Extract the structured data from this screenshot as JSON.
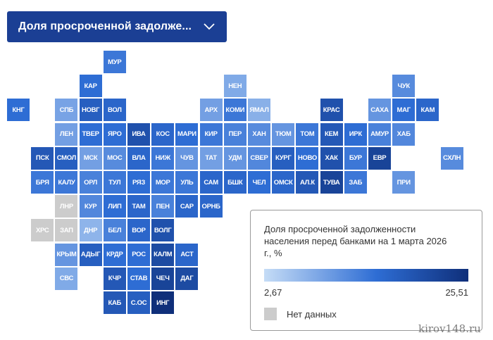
{
  "dropdown": {
    "label": "Доля просроченной задолже..."
  },
  "legend": {
    "title": "Доля просроченной задолженности населения перед банками на 1 марта 2026 г., %",
    "min": "2,67",
    "max": "25,51",
    "no_data": "Нет данных"
  },
  "watermark": "kirov148.ru",
  "regions": [
    {
      "code": "МУР",
      "level": 0.5
    },
    {
      "code": "КАР",
      "level": 0.55
    },
    {
      "code": "НЕН",
      "level": 0.25
    },
    {
      "code": "ЧУК",
      "level": 0.4
    },
    {
      "code": "КНГ",
      "level": 0.55
    },
    {
      "code": "СПБ",
      "level": 0.28
    },
    {
      "code": "НОВГ",
      "level": 0.65
    },
    {
      "code": "ВОЛ",
      "level": 0.6
    },
    {
      "code": "АРХ",
      "level": 0.3
    },
    {
      "code": "КОМИ",
      "level": 0.5
    },
    {
      "code": "ЯМАЛ",
      "level": 0.22
    },
    {
      "code": "КРАС",
      "level": 0.75
    },
    {
      "code": "САХА",
      "level": 0.35
    },
    {
      "code": "МАГ",
      "level": 0.55
    },
    {
      "code": "КАМ",
      "level": 0.6
    },
    {
      "code": "ЛЕН",
      "level": 0.3
    },
    {
      "code": "ТВЕР",
      "level": 0.55
    },
    {
      "code": "ЯРО",
      "level": 0.55
    },
    {
      "code": "ИВА",
      "level": 0.75
    },
    {
      "code": "КОС",
      "level": 0.6
    },
    {
      "code": "МАРИ",
      "level": 0.55
    },
    {
      "code": "КИР",
      "level": 0.5
    },
    {
      "code": "ПЕР",
      "level": 0.45
    },
    {
      "code": "ХАН",
      "level": 0.4
    },
    {
      "code": "ТЮМ",
      "level": 0.35
    },
    {
      "code": "ТОМ",
      "level": 0.5
    },
    {
      "code": "КЕМ",
      "level": 0.7
    },
    {
      "code": "ИРК",
      "level": 0.55
    },
    {
      "code": "АМУР",
      "level": 0.45
    },
    {
      "code": "ХАБ",
      "level": 0.42
    },
    {
      "code": "ПСК",
      "level": 0.7
    },
    {
      "code": "СМОЛ",
      "level": 0.65
    },
    {
      "code": "МСК",
      "level": 0.3
    },
    {
      "code": "МОС",
      "level": 0.4
    },
    {
      "code": "ВЛА",
      "level": 0.6
    },
    {
      "code": "НИЖ",
      "level": 0.5
    },
    {
      "code": "ЧУВ",
      "level": 0.35
    },
    {
      "code": "ТАТ",
      "level": 0.3
    },
    {
      "code": "УДМ",
      "level": 0.35
    },
    {
      "code": "СВЕР",
      "level": 0.42
    },
    {
      "code": "КУРГ",
      "level": 0.65
    },
    {
      "code": "НОВО",
      "level": 0.55
    },
    {
      "code": "ХАК",
      "level": 0.75
    },
    {
      "code": "БУР",
      "level": 0.5
    },
    {
      "code": "ЕВР",
      "level": 0.85
    },
    {
      "code": "СХЛН",
      "level": 0.4
    },
    {
      "code": "БРЯ",
      "level": 0.5
    },
    {
      "code": "КАЛУ",
      "level": 0.5
    },
    {
      "code": "ОРЛ",
      "level": 0.45
    },
    {
      "code": "ТУЛ",
      "level": 0.5
    },
    {
      "code": "РЯЗ",
      "level": 0.55
    },
    {
      "code": "МОР",
      "level": 0.5
    },
    {
      "code": "УЛЬ",
      "level": 0.5
    },
    {
      "code": "САМ",
      "level": 0.6
    },
    {
      "code": "БШК",
      "level": 0.6
    },
    {
      "code": "ЧЕЛ",
      "level": 0.55
    },
    {
      "code": "ОМСК",
      "level": 0.6
    },
    {
      "code": "АЛ.К",
      "level": 0.7
    },
    {
      "code": "ТУВА",
      "level": 0.85
    },
    {
      "code": "ЗАБ",
      "level": 0.5
    },
    {
      "code": "ПРИ",
      "level": 0.35
    },
    {
      "code": "ЛНР",
      "level": -1
    },
    {
      "code": "КУР",
      "level": 0.42
    },
    {
      "code": "ЛИП",
      "level": 0.55
    },
    {
      "code": "ТАМ",
      "level": 0.6
    },
    {
      "code": "ПЕН",
      "level": 0.45
    },
    {
      "code": "САР",
      "level": 0.6
    },
    {
      "code": "ОРНБ",
      "level": 0.6
    },
    {
      "code": "ХРС",
      "level": -1
    },
    {
      "code": "ЗАП",
      "level": -1
    },
    {
      "code": "ДНР",
      "level": 0.2
    },
    {
      "code": "БЕЛ",
      "level": 0.45
    },
    {
      "code": "ВОР",
      "level": 0.6
    },
    {
      "code": "ВОЛГ",
      "level": 0.75
    },
    {
      "code": "КРЫМ",
      "level": 0.35
    },
    {
      "code": "АДЫГ",
      "level": 0.65
    },
    {
      "code": "КРДР",
      "level": 0.55
    },
    {
      "code": "РОС",
      "level": 0.55
    },
    {
      "code": "КАЛМ",
      "level": 0.8
    },
    {
      "code": "АСТ",
      "level": 0.6
    },
    {
      "code": "СВС",
      "level": 0.25
    },
    {
      "code": "КЧР",
      "level": 0.7
    },
    {
      "code": "СТАВ",
      "level": 0.55
    },
    {
      "code": "ЧЕЧ",
      "level": 0.85
    },
    {
      "code": "ДАГ",
      "level": 0.8
    },
    {
      "code": "КАБ",
      "level": 0.7
    },
    {
      "code": "С.ОС",
      "level": 0.65
    },
    {
      "code": "ИНГ",
      "level": 1
    }
  ]
}
